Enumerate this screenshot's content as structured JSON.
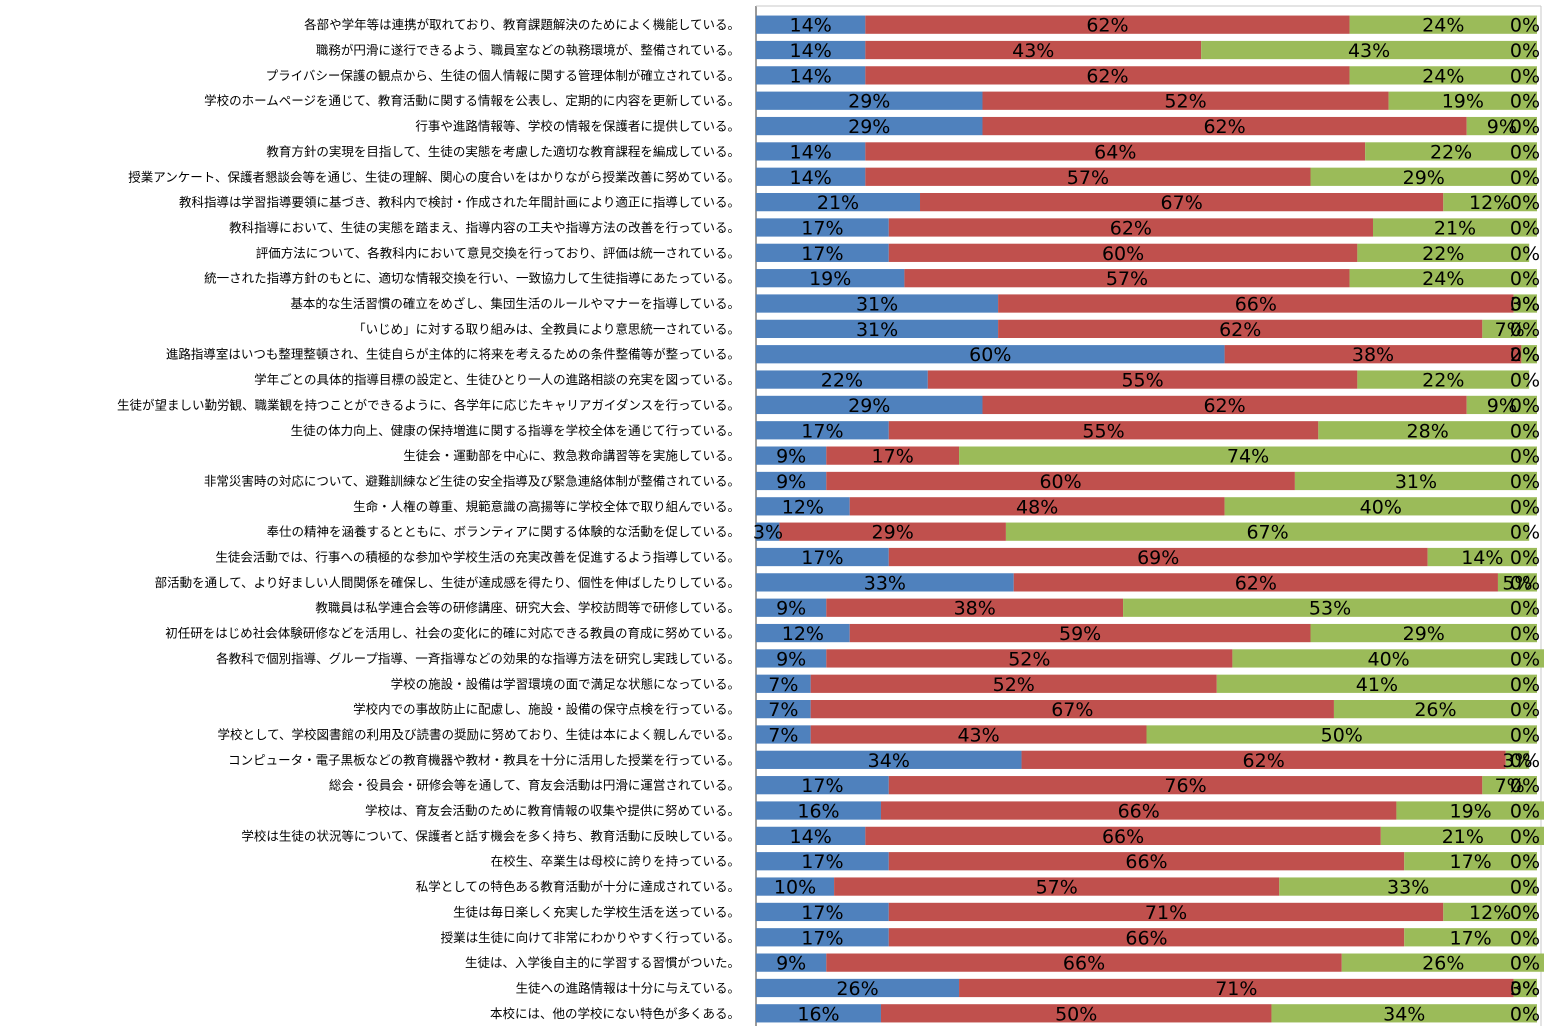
{
  "chart_data": {
    "type": "bar",
    "orientation": "horizontal",
    "stacked": true,
    "percent_stacked": true,
    "grid": false,
    "legend": "none",
    "categories": [
      "各部や学年等は連携が取れており、教育課題解決のためによく機能している。",
      "職務が円滑に遂行できるよう、職員室などの執務環境が、整備されている。",
      "プライバシー保護の観点から、生徒の個人情報に関する管理体制が確立されている。",
      "学校のホームページを通じて、教育活動に関する情報を公表し、定期的に内容を更新している。",
      "行事や進路情報等、学校の情報を保護者に提供している。",
      "教育方針の実現を目指して、生徒の実態を考慮した適切な教育課程を編成している。",
      "授業アンケート、保護者懇談会等を通じ、生徒の理解、関心の度合いをはかりながら授業改善に努めている。",
      "教科指導は学習指導要領に基づき、教科内で検討・作成された年間計画により適正に指導している。",
      "教科指導において、生徒の実態を踏まえ、指導内容の工夫や指導方法の改善を行っている。",
      "評価方法について、各教科内において意見交換を行っており、評価は統一されている。",
      "統一された指導方針のもとに、適切な情報交換を行い、一致協力して生徒指導にあたっている。",
      "基本的な生活習慣の確立をめざし、集団生活のルールやマナーを指導している。",
      "「いじめ」に対する取り組みは、全教員により意思統一されている。",
      "進路指導室はいつも整理整頓され、生徒自らが主体的に将来を考えるための条件整備等が整っている。",
      "学年ごとの具体的指導目標の設定と、生徒ひとり一人の進路相談の充実を図っている。",
      "生徒が望ましい勤労観、職業観を持つことができるように、各学年に応じたキャリアガイダンスを行っている。",
      "生徒の体力向上、健康の保持増進に関する指導を学校全体を通じて行っている。",
      "生徒会・運動部を中心に、救急救命講習等を実施している。",
      "非常災害時の対応について、避難訓練など生徒の安全指導及び緊急連絡体制が整備されている。",
      "生命・人権の尊重、規範意識の高揚等に学校全体で取り組んでいる。",
      "奉仕の精神を涵養するとともに、ボランティアに関する体験的な活動を促している。",
      "生徒会活動では、行事への積極的な参加や学校生活の充実改善を促進するよう指導している。",
      "部活動を通して、より好ましい人間関係を確保し、生徒が達成感を得たり、個性を伸ばしたりしている。",
      "教職員は私学連合会等の研修講座、研究大会、学校訪問等で研修している。",
      "初任研をはじめ社会体験研修などを活用し、社会の変化に的確に対応できる教員の育成に努めている。",
      "各教科で個別指導、グループ指導、一斉指導などの効果的な指導方法を研究し実践している。",
      "学校の施設・設備は学習環境の面で満足な状態になっている。",
      "学校内での事故防止に配慮し、施設・設備の保守点検を行っている。",
      "学校として、学校図書館の利用及び読書の奨励に努めており、生徒は本によく親しんでいる。",
      "コンピュータ・電子黒板などの教育機器や教材・教具を十分に活用した授業を行っている。",
      "総会・役員会・研修会等を通して、育友会活動は円滑に運営されている。",
      "学校は、育友会活動のために教育情報の収集や提供に努めている。",
      "学校は生徒の状況等について、保護者と話す機会を多く持ち、教育活動に反映している。",
      "在校生、卒業生は母校に誇りを持っている。",
      "私学としての特色ある教育活動が十分に達成されている。",
      "生徒は毎日楽しく充実した学校生活を送っている。",
      "授業は生徒に向けて非常にわかりやすく行っている。",
      "生徒は、入学後自主的に学習する習慣がついた。",
      "生徒への進路情報は十分に与えている。",
      "本校には、他の学校にない特色が多くある。"
    ],
    "series": [
      {
        "color": "#4f81bd",
        "values": [
          14,
          14,
          14,
          29,
          29,
          14,
          14,
          21,
          17,
          17,
          19,
          31,
          31,
          60,
          22,
          29,
          17,
          9,
          9,
          12,
          3,
          17,
          33,
          9,
          12,
          9,
          7,
          7,
          7,
          34,
          17,
          16,
          14,
          17,
          10,
          17,
          17,
          9,
          26,
          16
        ]
      },
      {
        "color": "#c0504d",
        "values": [
          62,
          43,
          62,
          52,
          62,
          64,
          57,
          67,
          62,
          60,
          57,
          66,
          62,
          38,
          55,
          62,
          55,
          17,
          60,
          48,
          29,
          69,
          62,
          38,
          59,
          52,
          52,
          67,
          43,
          62,
          76,
          66,
          66,
          66,
          57,
          71,
          66,
          66,
          71,
          50
        ]
      },
      {
        "color": "#9bbb59",
        "values": [
          24,
          43,
          24,
          19,
          9,
          22,
          29,
          12,
          21,
          22,
          24,
          3,
          7,
          2,
          22,
          9,
          28,
          74,
          31,
          40,
          67,
          14,
          5,
          53,
          29,
          40,
          41,
          26,
          50,
          3,
          7,
          19,
          21,
          17,
          33,
          12,
          17,
          26,
          3,
          34
        ]
      },
      {
        "color": "#8064a2",
        "values": [
          0,
          0,
          0,
          0,
          0,
          0,
          0,
          0,
          0,
          0,
          0,
          0,
          0,
          0,
          0,
          0,
          0,
          0,
          0,
          0,
          0,
          0,
          0,
          0,
          0,
          0,
          0,
          0,
          0,
          0,
          0,
          0,
          0,
          0,
          0,
          0,
          0,
          0,
          0,
          0
        ]
      }
    ],
    "xlim": [
      0,
      100
    ],
    "value_suffix": "%"
  }
}
